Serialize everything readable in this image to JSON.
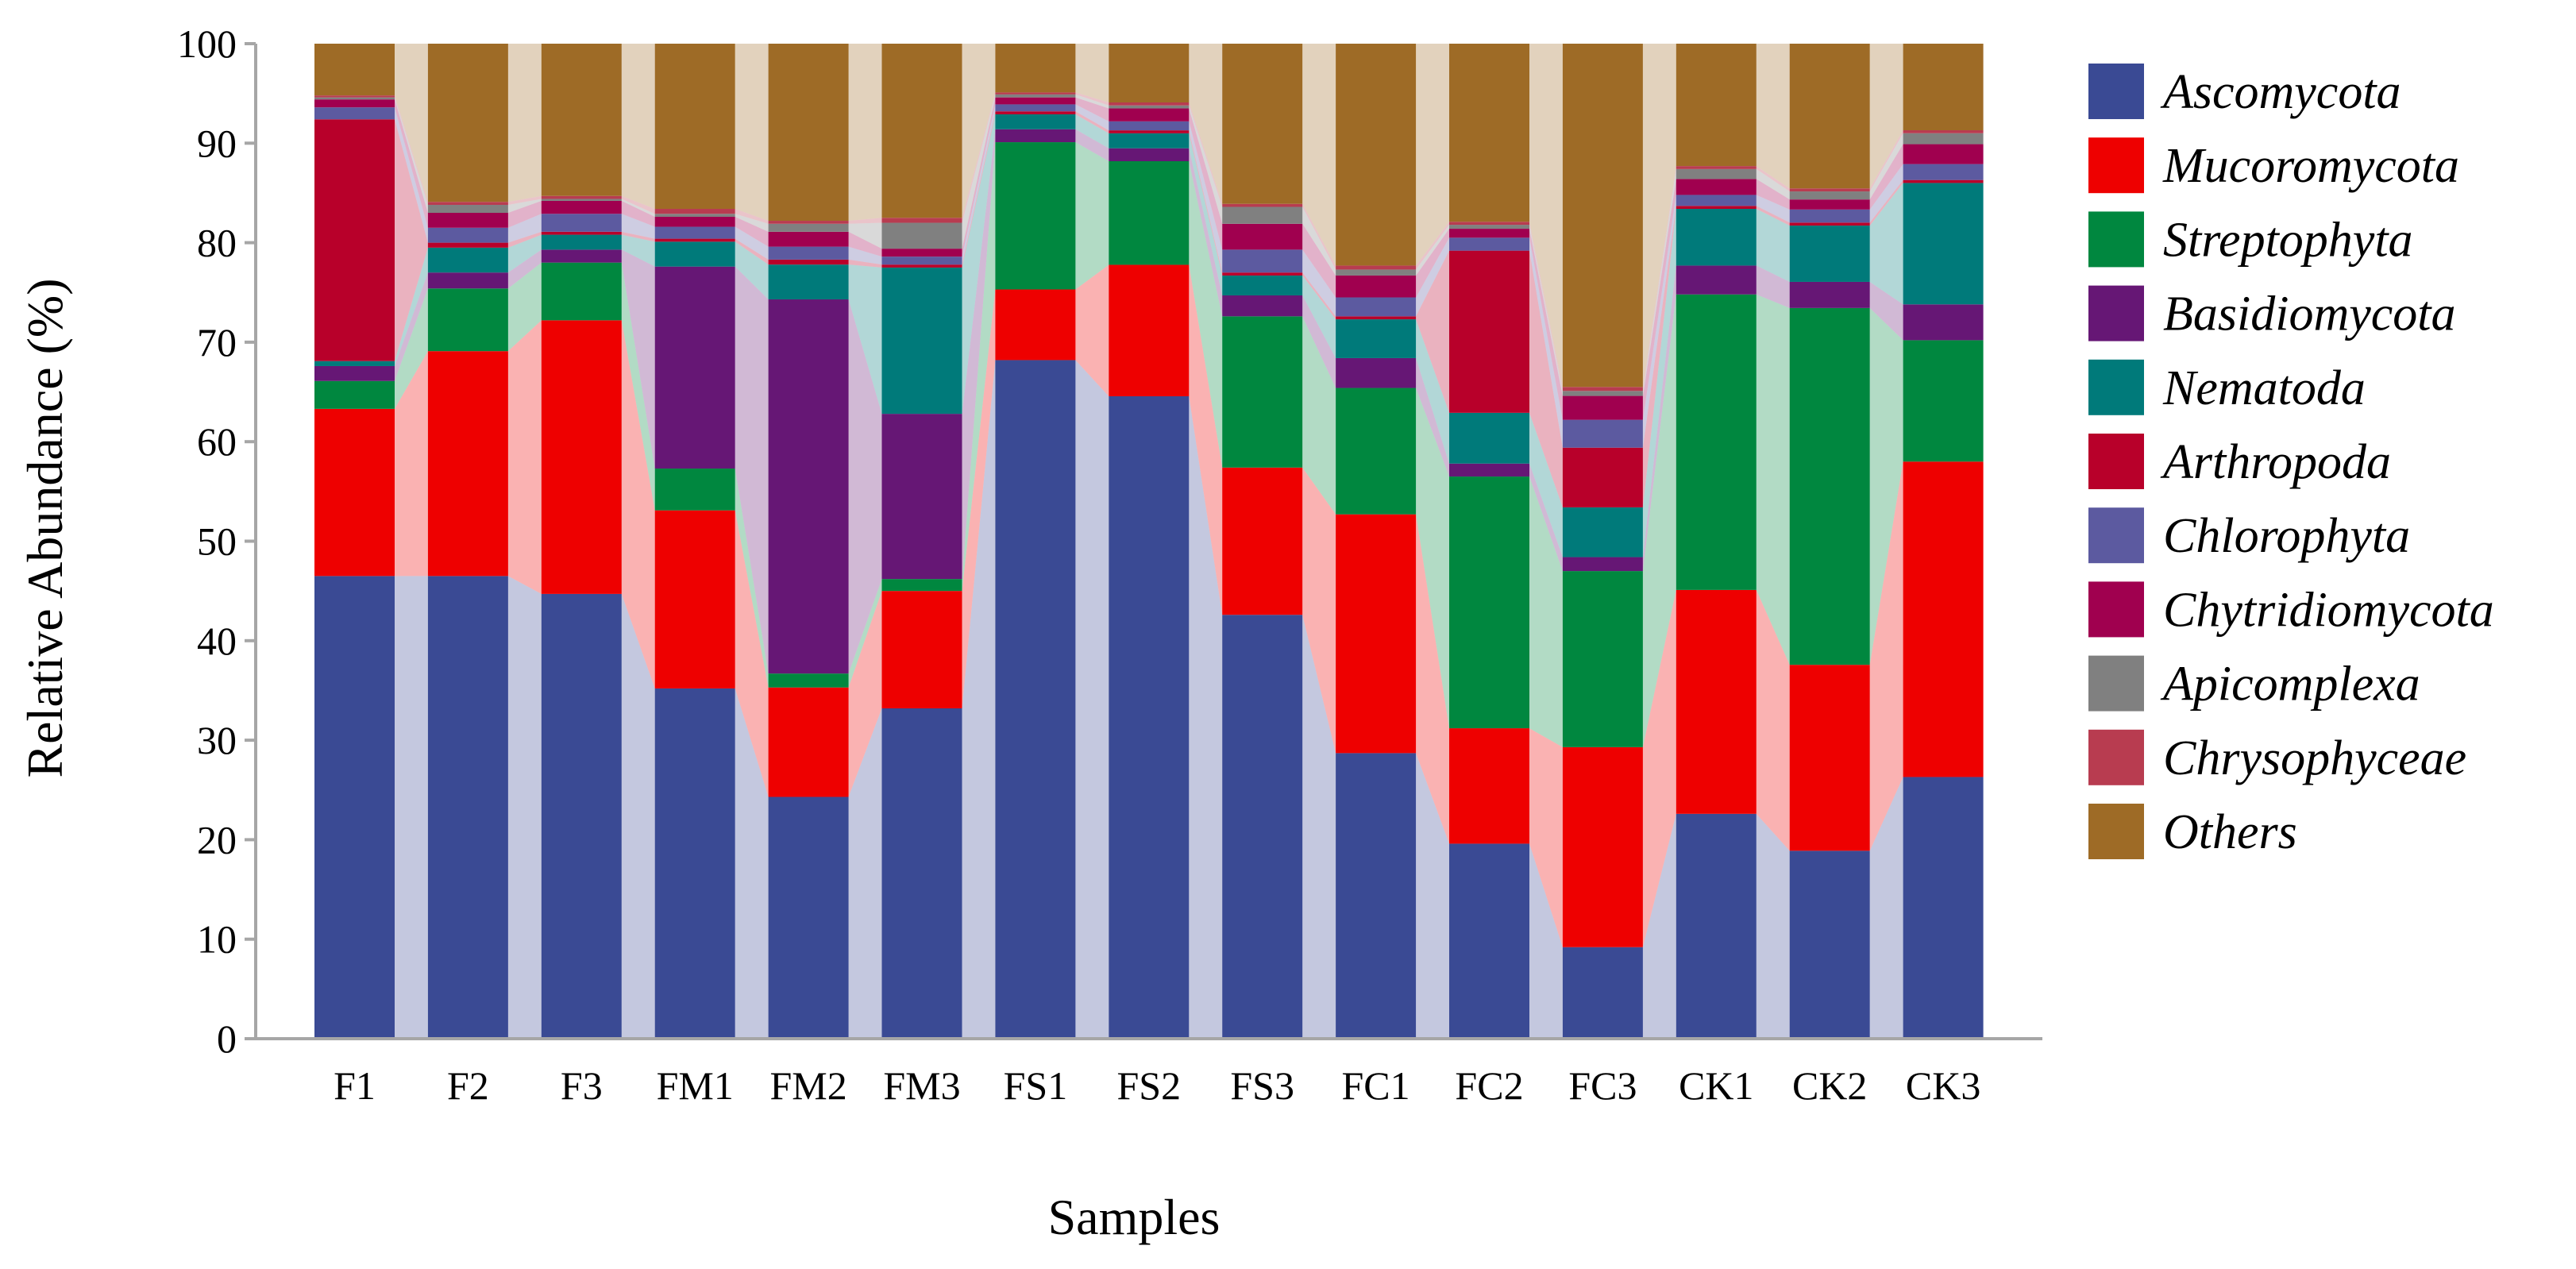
{
  "chart_data": {
    "type": "bar",
    "stacked": true,
    "ylabel": "Relative Abundance (%)",
    "xlabel": "Samples",
    "ylim": [
      0,
      100
    ],
    "yticks": [
      0,
      10,
      20,
      30,
      40,
      50,
      60,
      70,
      80,
      90,
      100
    ],
    "categories": [
      "F1",
      "F2",
      "F3",
      "FM1",
      "FM2",
      "FM3",
      "FS1",
      "FS2",
      "FS3",
      "FC1",
      "FC2",
      "FC3",
      "CK1",
      "CK2",
      "CK3"
    ],
    "legend_position": "right",
    "series": [
      {
        "name": "Ascomycota",
        "color": "#3a4a94",
        "values": [
          46.5,
          46.5,
          44.7,
          35.2,
          24.3,
          33.2,
          68.2,
          64.5,
          42.6,
          28.7,
          19.6,
          9.2,
          22.6,
          18.7,
          26.3
        ]
      },
      {
        "name": "Mucoromycota",
        "color": "#ee0000",
        "values": [
          16.8,
          22.6,
          27.5,
          17.9,
          11.0,
          11.8,
          7.1,
          13.2,
          14.8,
          24.0,
          11.6,
          20.1,
          22.5,
          18.5,
          31.7
        ]
      },
      {
        "name": "Streptophyta",
        "color": "#00873f",
        "values": [
          2.8,
          6.3,
          5.8,
          4.2,
          1.4,
          1.2,
          14.8,
          10.4,
          15.2,
          12.7,
          25.3,
          17.7,
          29.7,
          35.5,
          12.2
        ]
      },
      {
        "name": "Basidiomycota",
        "color": "#661775",
        "values": [
          1.5,
          1.6,
          1.3,
          20.3,
          37.6,
          16.6,
          1.3,
          1.3,
          2.1,
          3.0,
          1.3,
          1.4,
          2.9,
          2.6,
          3.6
        ]
      },
      {
        "name": "Nematoda",
        "color": "#007a7a",
        "values": [
          0.5,
          2.5,
          1.5,
          2.5,
          3.5,
          14.7,
          1.5,
          1.5,
          2.0,
          3.9,
          5.1,
          5.0,
          5.7,
          5.6,
          12.2
        ]
      },
      {
        "name": "Arthropoda",
        "color": "#b8002a",
        "values": [
          24.3,
          0.5,
          0.3,
          0.3,
          0.5,
          0.3,
          0.3,
          0.3,
          0.3,
          0.3,
          16.3,
          6.0,
          0.3,
          0.3,
          0.3
        ]
      },
      {
        "name": "Chlorophyta",
        "color": "#5c5aa0",
        "values": [
          1.2,
          1.5,
          1.8,
          1.2,
          1.3,
          0.8,
          0.7,
          0.9,
          2.3,
          1.9,
          1.3,
          2.8,
          1.1,
          1.3,
          1.6
        ]
      },
      {
        "name": "Chytridiomycota",
        "color": "#a0004f",
        "values": [
          0.8,
          1.5,
          1.3,
          1.0,
          1.5,
          0.8,
          0.7,
          1.3,
          2.6,
          2.2,
          0.9,
          2.4,
          1.6,
          1.0,
          2.0
        ]
      },
      {
        "name": "Apicomplexa",
        "color": "#808080",
        "values": [
          0.2,
          0.8,
          0.2,
          0.3,
          0.8,
          2.6,
          0.3,
          0.3,
          1.7,
          0.6,
          0.4,
          0.5,
          1.0,
          0.8,
          1.1
        ]
      },
      {
        "name": "Chrysophyceae",
        "color": "#b83c50",
        "values": [
          0.2,
          0.3,
          0.3,
          0.5,
          0.3,
          0.5,
          0.2,
          0.3,
          0.3,
          0.4,
          0.3,
          0.4,
          0.3,
          0.3,
          0.3
        ]
      },
      {
        "name": "Others",
        "color": "#9e6b26",
        "values": [
          5.2,
          15.9,
          15.3,
          16.6,
          17.8,
          17.5,
          4.9,
          5.9,
          16.1,
          22.3,
          17.9,
          34.5,
          12.3,
          14.4,
          8.7
        ]
      }
    ]
  }
}
